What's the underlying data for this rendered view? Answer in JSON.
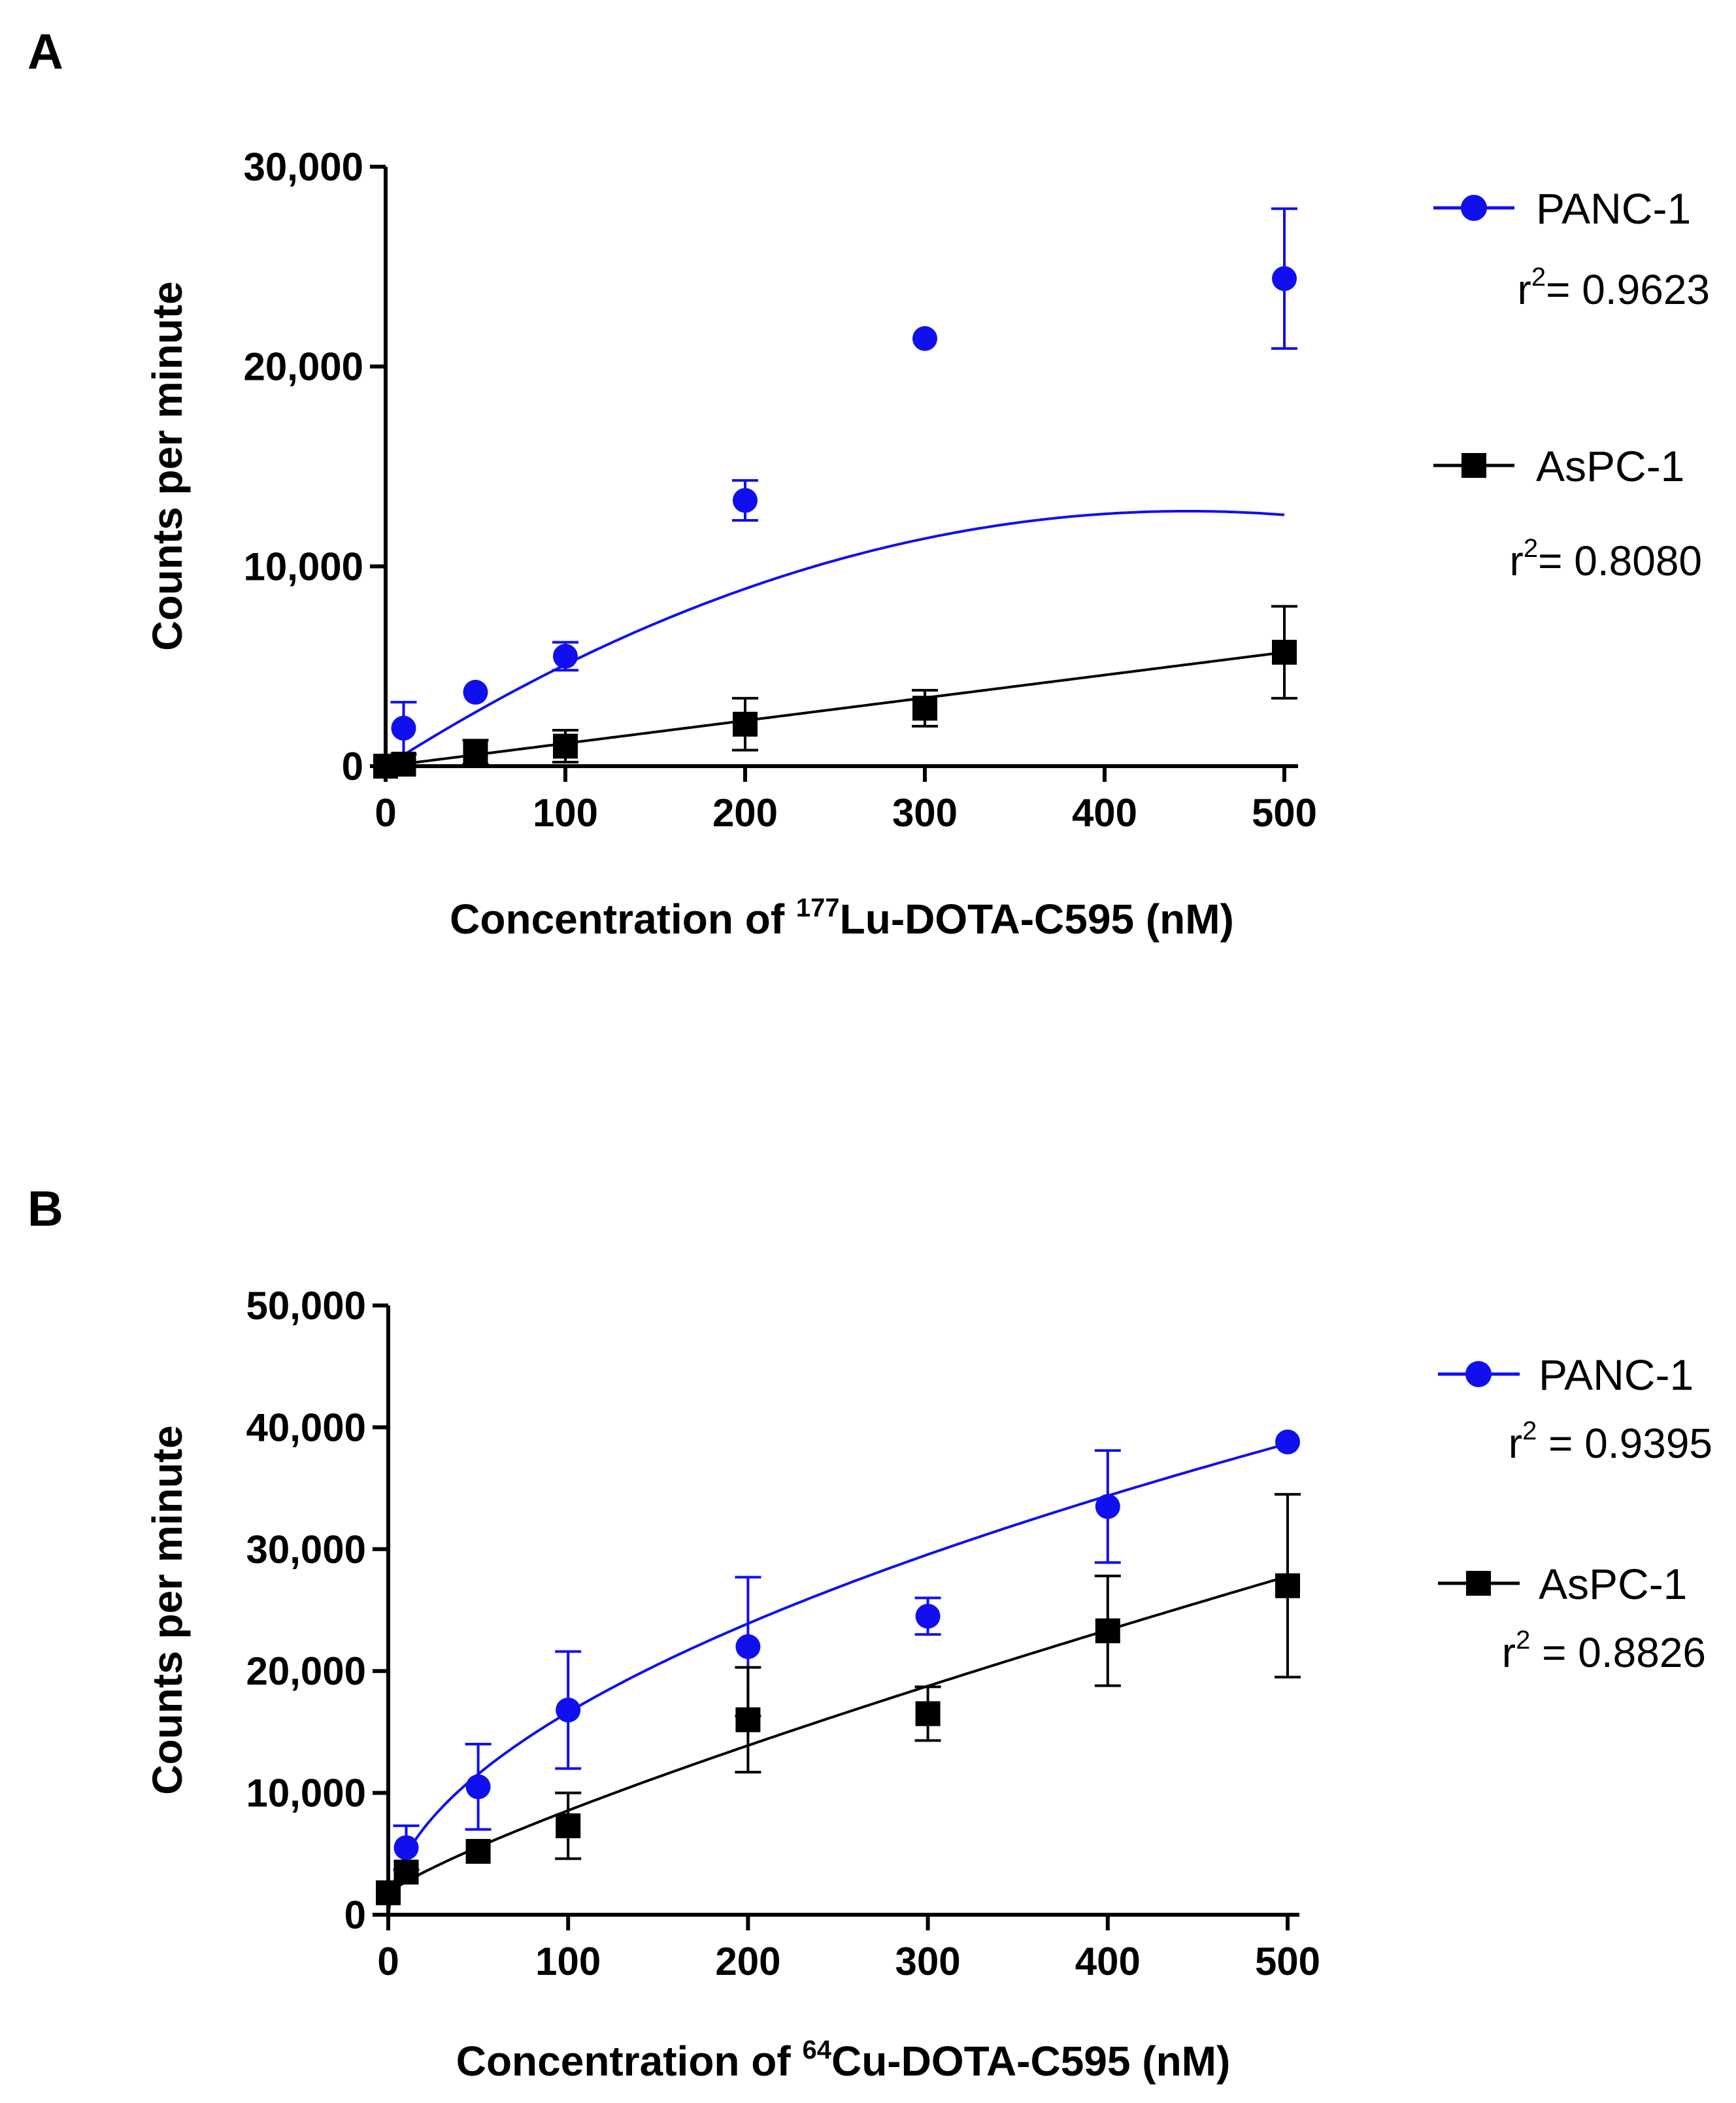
{
  "chart_data": [
    {
      "panel": "A",
      "type": "scatter",
      "xlabel_prefix": "Concentration of ",
      "xlabel_sup": "177",
      "xlabel_suffix": "Lu-DOTA-C595 (nM)",
      "ylabel": "Counts per minute",
      "xlim": [
        0,
        500
      ],
      "ylim": [
        0,
        30000
      ],
      "xticks": [
        "0",
        "100",
        "200",
        "300",
        "400",
        "500"
      ],
      "yticks": [
        {
          "value": 0,
          "label": "0"
        },
        {
          "value": 10000,
          "label": "10,000"
        },
        {
          "value": 20000,
          "label": "20,000"
        },
        {
          "value": 30000,
          "label": "30,000"
        }
      ],
      "series": [
        {
          "name": "PANC-1",
          "marker": "circle",
          "color": "#1010ee",
          "r2_prefix": "r",
          "r2_sup": "2",
          "r2_suffix": "= 0.9623",
          "x": [
            0,
            10,
            50,
            100,
            200,
            300,
            500
          ],
          "y": [
            0,
            1900,
            3700,
            5500,
            13300,
            21400,
            24400
          ],
          "err": [
            0,
            1300,
            0,
            700,
            1000,
            0,
            3500
          ],
          "fit": {
            "kind": "quadratic",
            "a": 57.2,
            "b": -0.0641
          }
        },
        {
          "name": "AsPC-1",
          "marker": "square",
          "color": "#000000",
          "r2_prefix": "r",
          "r2_sup": "2",
          "r2_suffix": "= 0.8080",
          "x": [
            0,
            10,
            50,
            100,
            200,
            300,
            500
          ],
          "y": [
            0,
            100,
            700,
            1000,
            2100,
            2900,
            5700
          ],
          "err": [
            0,
            0,
            600,
            800,
            1300,
            900,
            2300
          ],
          "fit": {
            "kind": "linear",
            "a": 11.4,
            "b": 0
          }
        }
      ]
    },
    {
      "panel": "B",
      "type": "scatter",
      "xlabel_prefix": "Concentration of ",
      "xlabel_sup": "64",
      "xlabel_suffix": "Cu-DOTA-C595 (nM)",
      "ylabel": "Counts per minute",
      "xlim": [
        0,
        500
      ],
      "ylim": [
        0,
        50000
      ],
      "xticks": [
        "0",
        "100",
        "200",
        "300",
        "400",
        "500"
      ],
      "yticks": [
        {
          "value": 0,
          "label": "0"
        },
        {
          "value": 10000,
          "label": "10,000"
        },
        {
          "value": 20000,
          "label": "20,000"
        },
        {
          "value": 30000,
          "label": "30,000"
        },
        {
          "value": 40000,
          "label": "40,000"
        },
        {
          "value": 50000,
          "label": "50,000"
        }
      ],
      "series": [
        {
          "name": "PANC-1",
          "marker": "circle",
          "color": "#1010ee",
          "r2_prefix": "r",
          "r2_sup": "2",
          "r2_suffix": " = 0.9395",
          "x": [
            10,
            50,
            100,
            200,
            300,
            400,
            500
          ],
          "y": [
            5500,
            10500,
            16800,
            22000,
            24500,
            33500,
            38800
          ],
          "err": [
            1800,
            3500,
            4800,
            5700,
            1500,
            4600,
            0
          ],
          "fit": {
            "kind": "power",
            "a": 1480,
            "b": 0.525
          }
        },
        {
          "name": "AsPC-1",
          "marker": "square",
          "color": "#000000",
          "r2_prefix": "r",
          "r2_sup": "2",
          "r2_suffix": " = 0.8826",
          "x": [
            0,
            10,
            50,
            100,
            200,
            300,
            500,
            400
          ],
          "y": [
            1800,
            3500,
            5200,
            7300,
            16000,
            16500,
            27000,
            23300
          ],
          "err": [
            0,
            0,
            0,
            2700,
            4300,
            2200,
            7500,
            4500
          ],
          "fit": {
            "kind": "power_offset",
            "a": 150,
            "b": 0.83,
            "c": 1700
          }
        }
      ]
    }
  ]
}
